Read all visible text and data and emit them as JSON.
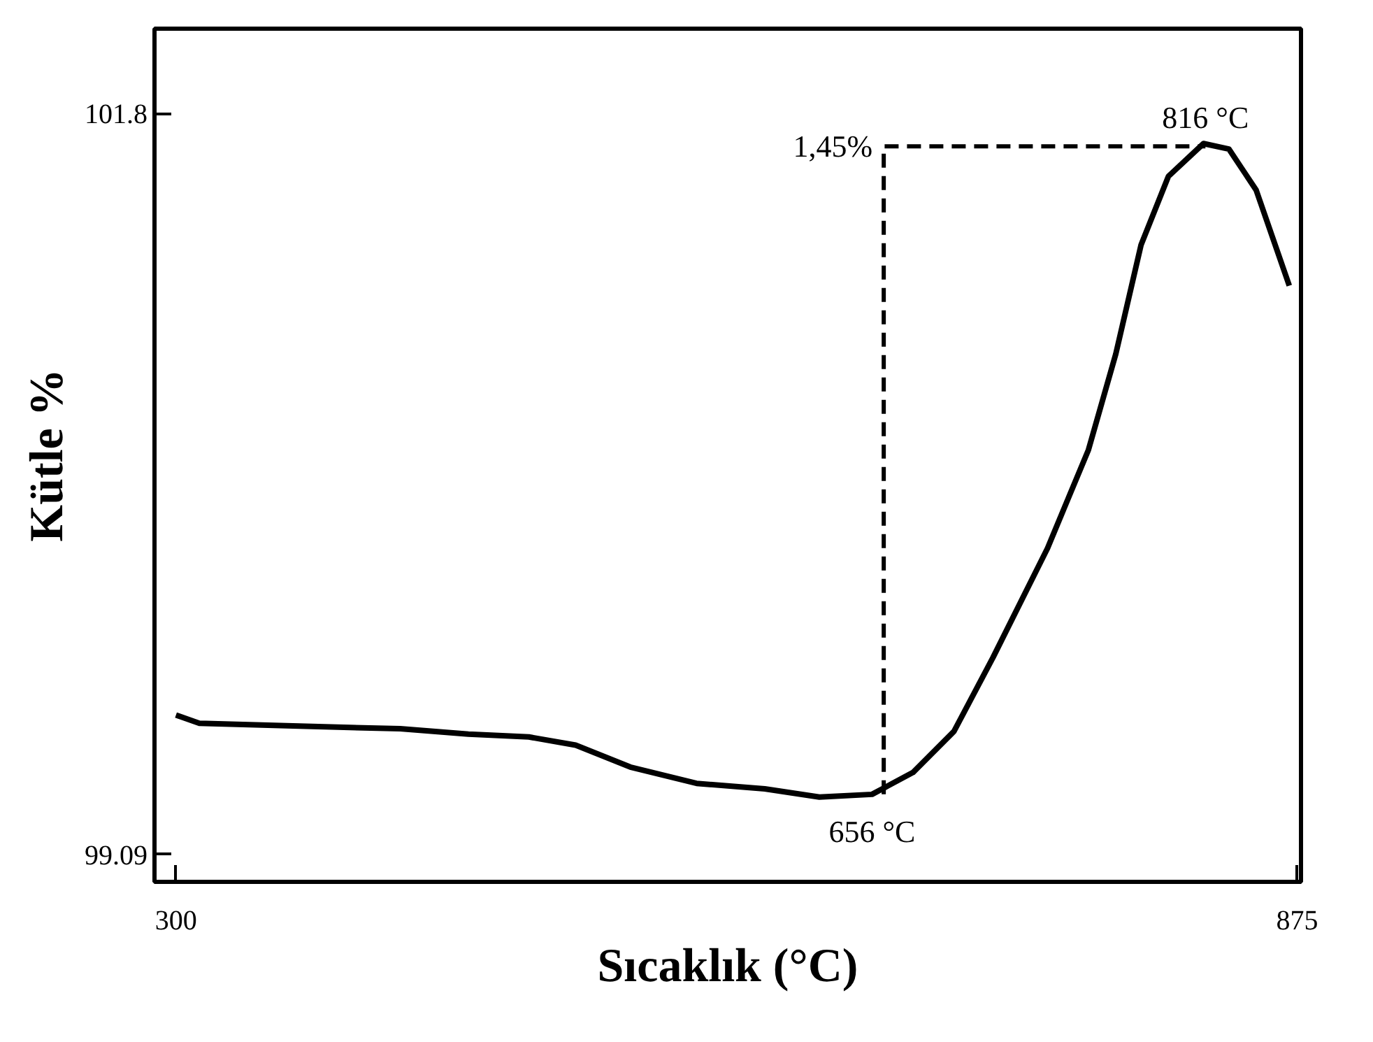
{
  "chart_data": {
    "type": "line",
    "xlabel": "Sıcaklık (°C)",
    "ylabel": "Kütle %",
    "xlim": [
      289,
      877
    ],
    "ylim": [
      98.99,
      102.11
    ],
    "xticks": [
      300,
      875
    ],
    "yticks": [
      99.09,
      101.8
    ],
    "grid": false,
    "series": [
      {
        "color": "#000000",
        "x": [
          300,
          312,
          360,
          415,
          450,
          481,
          505,
          533,
          567,
          602,
          630,
          657,
          678,
          699,
          719,
          747,
          768,
          782,
          795,
          809,
          827,
          840,
          854,
          871
        ],
        "values": [
          99.6,
          99.57,
          99.56,
          99.55,
          99.53,
          99.52,
          99.49,
          99.41,
          99.35,
          99.33,
          99.3,
          99.31,
          99.39,
          99.54,
          99.81,
          100.21,
          100.57,
          100.92,
          101.32,
          101.57,
          101.69,
          101.67,
          101.52,
          101.17
        ]
      },
      {
        "color": "#000000",
        "line_style": "dashed",
        "x": [
          663,
          663,
          828
        ],
        "values": [
          99.31,
          101.68,
          101.68
        ]
      }
    ],
    "annotations": [
      {
        "text": "1,45%",
        "x": 663,
        "y": 101.68
      },
      {
        "text": "816 °C",
        "x": 828,
        "y": 101.69
      },
      {
        "text": "656 °C",
        "x": 657,
        "y": 99.3
      }
    ]
  }
}
